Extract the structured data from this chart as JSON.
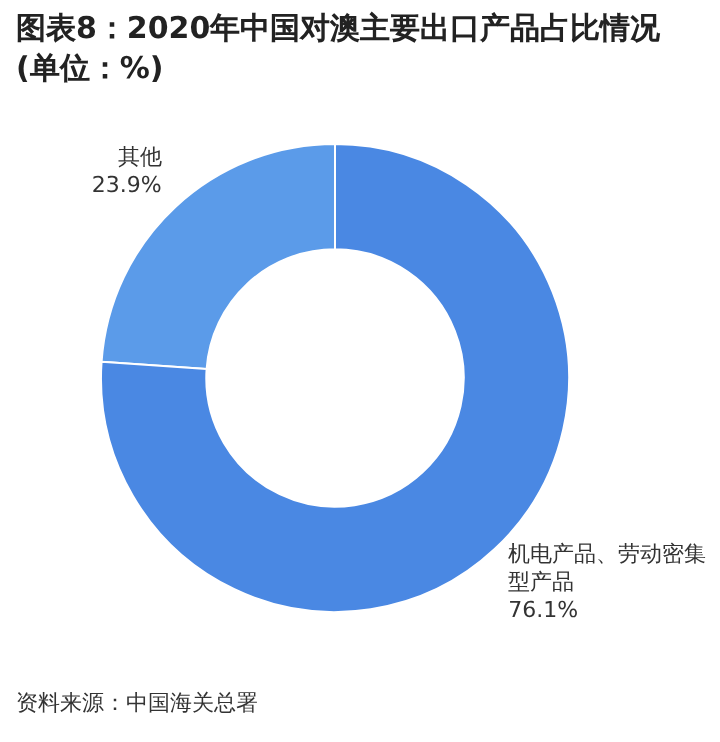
{
  "chart_data": {
    "type": "donut",
    "title": "图表8：2020年中国对澳主要出口产品占比情况(单位：%)",
    "categories": [
      "其他",
      "机电产品、劳动密集型产品"
    ],
    "values": [
      23.9,
      76.1
    ],
    "colors": [
      "#5b9be9",
      "#4a88e3"
    ],
    "value_labels": [
      "23.9%",
      "76.1%"
    ],
    "legend": false,
    "annotations": [
      "资料来源：中国海关总署"
    ]
  }
}
